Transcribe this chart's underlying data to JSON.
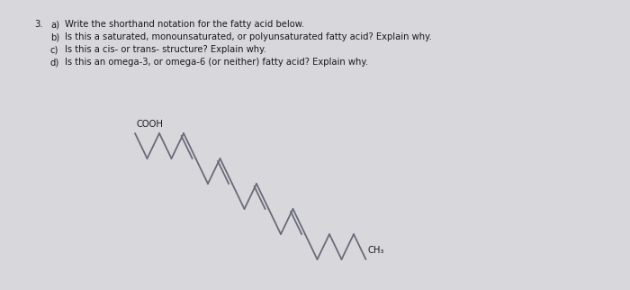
{
  "background_color": "#d8d8dc",
  "text_color": "#1a1a1a",
  "molecule_color": "#6a6a7a",
  "title_number": "3.",
  "questions": [
    [
      "a)",
      "Write the shorthand notation for the fatty acid below."
    ],
    [
      "b)",
      "Is this a saturated, monounsaturated, or polyunsaturated fatty acid? Explain why."
    ],
    [
      "c)",
      "Is this a cis- or trans- structure? Explain why."
    ],
    [
      "d)",
      "Is this an omega-3, or omega-6 (or neither) fatty acid? Explain why."
    ]
  ],
  "cooh_label": "COOH",
  "ch3_label": "CH₃",
  "text_fontsize": 7.2,
  "label_fontsize": 7.2
}
